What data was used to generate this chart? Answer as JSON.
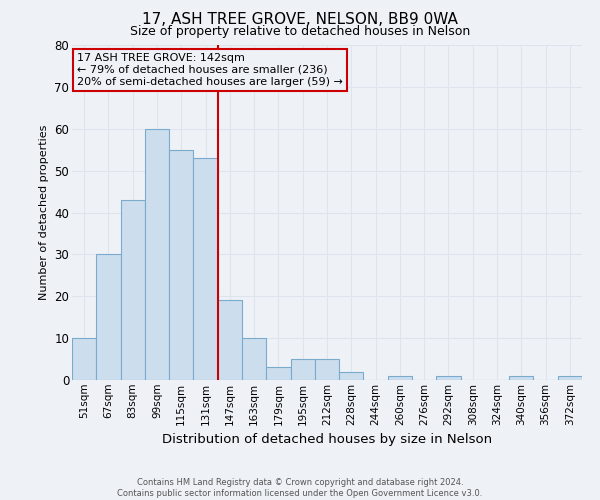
{
  "title": "17, ASH TREE GROVE, NELSON, BB9 0WA",
  "subtitle": "Size of property relative to detached houses in Nelson",
  "xlabel": "Distribution of detached houses by size in Nelson",
  "ylabel": "Number of detached properties",
  "bar_labels": [
    "51sqm",
    "67sqm",
    "83sqm",
    "99sqm",
    "115sqm",
    "131sqm",
    "147sqm",
    "163sqm",
    "179sqm",
    "195sqm",
    "212sqm",
    "228sqm",
    "244sqm",
    "260sqm",
    "276sqm",
    "292sqm",
    "308sqm",
    "324sqm",
    "340sqm",
    "356sqm",
    "372sqm"
  ],
  "bar_values": [
    10,
    30,
    43,
    60,
    55,
    53,
    19,
    10,
    3,
    5,
    5,
    2,
    0,
    1,
    0,
    1,
    0,
    0,
    1,
    0,
    1
  ],
  "bar_color": "#ccdded",
  "bar_edge_color": "#7aaacc",
  "vline_color": "#cc0000",
  "annotation_box_color": "#cc0000",
  "annotation_title": "17 ASH TREE GROVE: 142sqm",
  "annotation_line1": "← 79% of detached houses are smaller (236)",
  "annotation_line2": "20% of semi-detached houses are larger (59) →",
  "ylim": [
    0,
    80
  ],
  "yticks": [
    0,
    10,
    20,
    30,
    40,
    50,
    60,
    70,
    80
  ],
  "footer1": "Contains HM Land Registry data © Crown copyright and database right 2024.",
  "footer2": "Contains public sector information licensed under the Open Government Licence v3.0.",
  "background_color": "#eef2f7",
  "grid_color": "#dde4ee",
  "bar_width": 1.0,
  "vline_x": 5.5
}
